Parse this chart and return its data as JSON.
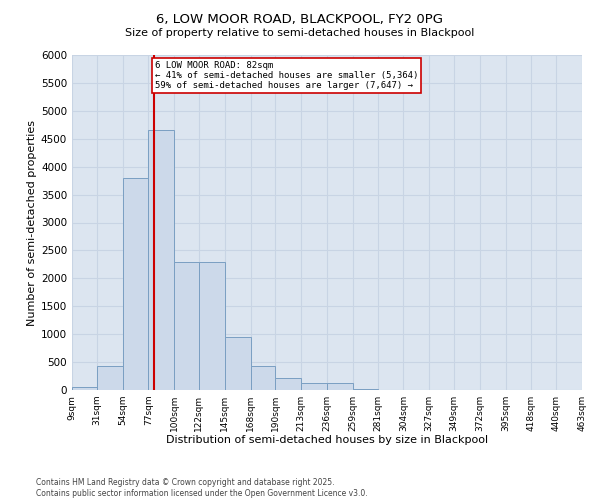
{
  "title1": "6, LOW MOOR ROAD, BLACKPOOL, FY2 0PG",
  "title2": "Size of property relative to semi-detached houses in Blackpool",
  "xlabel": "Distribution of semi-detached houses by size in Blackpool",
  "ylabel": "Number of semi-detached properties",
  "annotation_text": "6 LOW MOOR ROAD: 82sqm\n← 41% of semi-detached houses are smaller (5,364)\n59% of semi-detached houses are larger (7,647) →",
  "bins": [
    9,
    31,
    54,
    77,
    100,
    122,
    145,
    168,
    190,
    213,
    236,
    259,
    281,
    304,
    327,
    349,
    372,
    395,
    418,
    440,
    463
  ],
  "counts": [
    50,
    430,
    3800,
    4650,
    2300,
    2300,
    950,
    430,
    220,
    130,
    120,
    20,
    5,
    2,
    1,
    1,
    1,
    0,
    0,
    0
  ],
  "bar_color": "#ccd9ea",
  "bar_edge_color": "#7a9fc2",
  "vline_color": "#cc0000",
  "vline_x": 82,
  "box_facecolor": "#ffffff",
  "box_edgecolor": "#cc0000",
  "grid_color": "#c8d4e4",
  "background_color": "#dce5f0",
  "ylim": [
    0,
    6000
  ],
  "ytick_step": 500,
  "footnote": "Contains HM Land Registry data © Crown copyright and database right 2025.\nContains public sector information licensed under the Open Government Licence v3.0."
}
